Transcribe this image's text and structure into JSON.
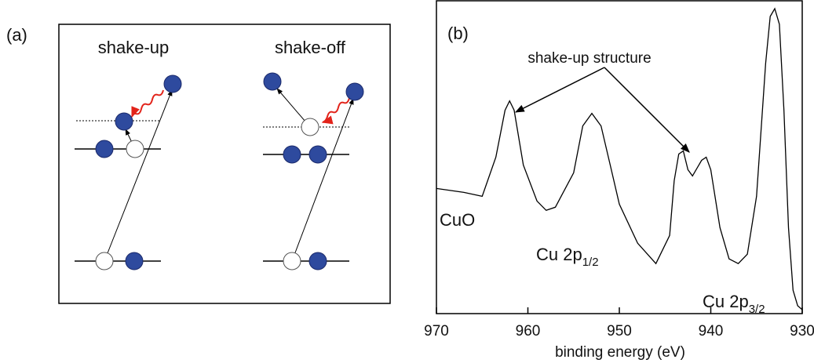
{
  "diagram": {
    "label": "(a)",
    "titles": [
      "shake-up",
      "shake-off"
    ]
  },
  "chart_data": {
    "type": "line",
    "label": "(b)",
    "xlabel": "binding energy (eV)",
    "x": [
      970,
      967,
      965,
      963.5,
      962.5,
      962,
      961.5,
      960.5,
      959,
      958,
      957,
      955,
      954,
      953,
      952,
      951,
      950,
      948,
      946,
      944.5,
      944,
      943.5,
      943,
      942.5,
      942,
      941,
      940.5,
      940,
      939,
      938,
      937,
      936,
      935,
      934,
      933.5,
      933,
      932.5,
      932,
      931.5,
      931,
      930.5,
      930
    ],
    "values": [
      40,
      38.75,
      37.5,
      50,
      65,
      68,
      65,
      47.5,
      36,
      33,
      34,
      45,
      60,
      64,
      60,
      47.5,
      35,
      22.5,
      16,
      25,
      42.5,
      51,
      52,
      46,
      44,
      49,
      50,
      46,
      27.5,
      17.5,
      16,
      19,
      37.5,
      80,
      95,
      97.5,
      92.5,
      65,
      27.5,
      7.5,
      2.5,
      1.25
    ],
    "color": "#000000",
    "xlim": [
      970,
      930
    ],
    "xticks": [
      970,
      960,
      950,
      940,
      930
    ],
    "ylim": [
      0,
      100
    ],
    "annotations": {
      "arrow_text": "shake-up structure",
      "cuo": "CuO",
      "p12": {
        "text": "Cu 2p",
        "sub": "1/2"
      },
      "p32": {
        "text": "Cu 2p",
        "sub": "3/2"
      }
    }
  }
}
